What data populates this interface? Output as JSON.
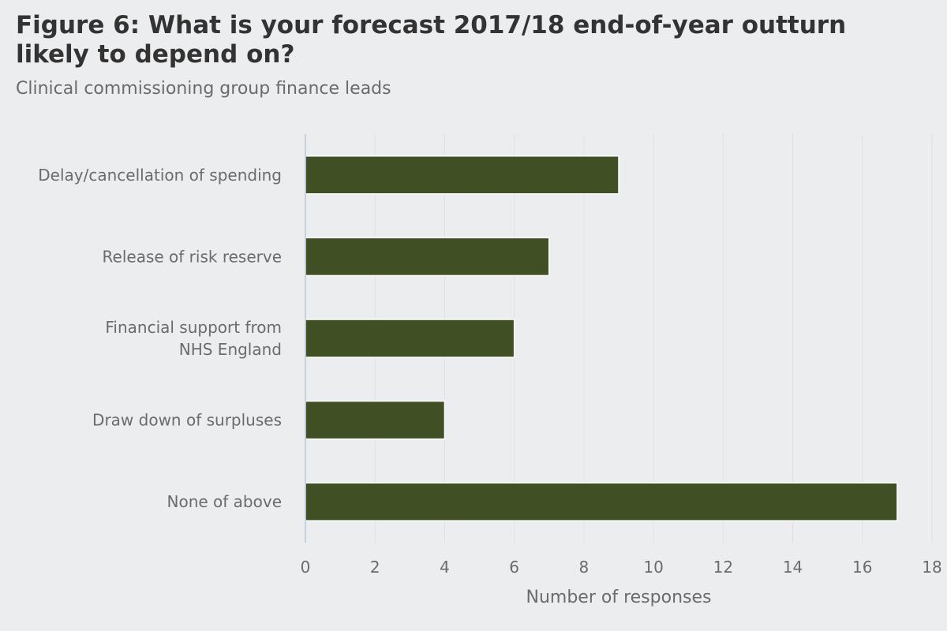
{
  "title": "Figure 6: What is your forecast 2017/18 end-of-year outturn likely to depend on?",
  "subtitle": "Clinical commissioning group finance leads",
  "chart_data": {
    "type": "bar",
    "orientation": "horizontal",
    "categories": [
      "Delay/cancellation of spending",
      "Release of risk reserve",
      "Financial support from NHS England",
      "Draw down of surpluses",
      "None of above"
    ],
    "values": [
      9,
      7,
      6,
      4,
      17
    ],
    "xlabel": "Number of responses",
    "ylabel": "",
    "xlim": [
      0,
      18
    ],
    "xticks": [
      "0",
      "2",
      "4",
      "6",
      "8",
      "10",
      "12",
      "14",
      "16",
      "18"
    ],
    "grid": "vertical",
    "bar_color": "#404f24"
  }
}
